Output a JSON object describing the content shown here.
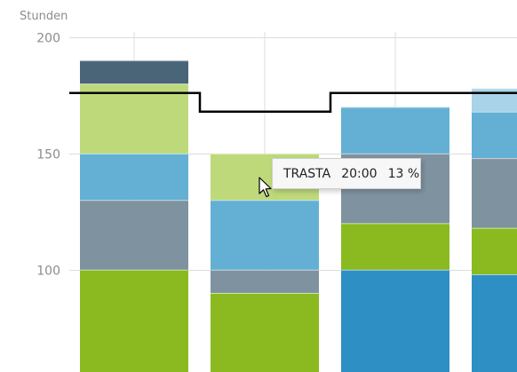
{
  "chart_data": {
    "type": "bar",
    "stacked": true,
    "ylabel": "Stunden",
    "ylim": [
      56,
      216
    ],
    "yticks": [
      100,
      150,
      200
    ],
    "grid": true,
    "columns": [
      {
        "segments": [
          {
            "from": 56,
            "to": 100,
            "color": "#8aba1f"
          },
          {
            "from": 100,
            "to": 130,
            "color": "#7f929f"
          },
          {
            "from": 130,
            "to": 150,
            "color": "#63b0d4"
          },
          {
            "from": 150,
            "to": 180,
            "color": "#bdd97a"
          },
          {
            "from": 180,
            "to": 190,
            "color": "#4a6478"
          }
        ]
      },
      {
        "segments": [
          {
            "from": 56,
            "to": 90,
            "color": "#8aba1f"
          },
          {
            "from": 90,
            "to": 100,
            "color": "#7f929f"
          },
          {
            "from": 100,
            "to": 130,
            "color": "#63b0d4"
          },
          {
            "from": 130,
            "to": 150,
            "color": "#bdd97a"
          }
        ]
      },
      {
        "segments": [
          {
            "from": 56,
            "to": 100,
            "color": "#2d8fc4"
          },
          {
            "from": 100,
            "to": 120,
            "color": "#8aba1f"
          },
          {
            "from": 120,
            "to": 150,
            "color": "#7f929f"
          },
          {
            "from": 150,
            "to": 170,
            "color": "#63b0d4"
          }
        ]
      },
      {
        "segments": [
          {
            "from": 56,
            "to": 98,
            "color": "#2d8fc4"
          },
          {
            "from": 98,
            "to": 118,
            "color": "#8aba1f"
          },
          {
            "from": 118,
            "to": 148,
            "color": "#7f929f"
          },
          {
            "from": 148,
            "to": 168,
            "color": "#63b0d4"
          },
          {
            "from": 168,
            "to": 178,
            "color": "#a9d3e8"
          }
        ]
      }
    ],
    "target_line": [
      176,
      168,
      176,
      176
    ]
  },
  "tooltip": {
    "name": "TRASTA",
    "hours": "20:00",
    "percent": "13 %"
  }
}
